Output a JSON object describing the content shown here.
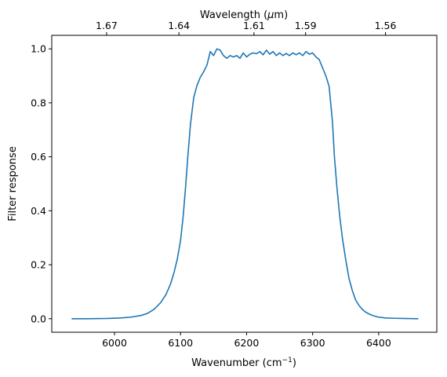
{
  "chart_data": {
    "type": "line",
    "xlabel": "Wavenumber (cm",
    "xlabel_sup": "−1",
    "xlabel_end": ")",
    "ylabel": "Filter response",
    "top_xlabel_pre": "Wavelength (",
    "top_xlabel_mu": "μ",
    "top_xlabel_post": "m)",
    "xlim": [
      5905,
      6488
    ],
    "ylim": [
      -0.05,
      1.05
    ],
    "grid": false,
    "line_color": "#1f77b4",
    "x_ticks": [
      {
        "value": 6000,
        "label": "6000"
      },
      {
        "value": 6100,
        "label": "6100"
      },
      {
        "value": 6200,
        "label": "6200"
      },
      {
        "value": 6300,
        "label": "6300"
      },
      {
        "value": 6400,
        "label": "6400"
      }
    ],
    "y_ticks": [
      {
        "value": 0.0,
        "label": "0.0"
      },
      {
        "value": 0.2,
        "label": "0.2"
      },
      {
        "value": 0.4,
        "label": "0.4"
      },
      {
        "value": 0.6,
        "label": "0.6"
      },
      {
        "value": 0.8,
        "label": "0.8"
      },
      {
        "value": 1.0,
        "label": "1.0"
      }
    ],
    "top_ticks": [
      {
        "value": 1.67,
        "label": "1.67"
      },
      {
        "value": 1.64,
        "label": "1.64"
      },
      {
        "value": 1.61,
        "label": "1.61"
      },
      {
        "value": 1.59,
        "label": "1.59"
      },
      {
        "value": 1.56,
        "label": "1.56"
      }
    ],
    "series": [
      {
        "x": [
          5935,
          5960,
          5990,
          6010,
          6025,
          6040,
          6050,
          6060,
          6070,
          6078,
          6085,
          6090,
          6095,
          6100,
          6104,
          6108,
          6111,
          6115,
          6120,
          6125,
          6130,
          6135,
          6140,
          6145,
          6150,
          6155,
          6160,
          6165,
          6170,
          6175,
          6180,
          6185,
          6190,
          6195,
          6200,
          6205,
          6210,
          6215,
          6220,
          6225,
          6230,
          6235,
          6240,
          6245,
          6250,
          6255,
          6260,
          6265,
          6270,
          6275,
          6280,
          6285,
          6290,
          6295,
          6300,
          6305,
          6310,
          6315,
          6320,
          6325,
          6330,
          6333,
          6337,
          6341,
          6345,
          6350,
          6355,
          6360,
          6365,
          6370,
          6375,
          6380,
          6385,
          6390,
          6395,
          6400,
          6410,
          6420,
          6435,
          6460
        ],
        "y": [
          0.0,
          0.0,
          0.001,
          0.003,
          0.006,
          0.012,
          0.02,
          0.035,
          0.06,
          0.09,
          0.13,
          0.17,
          0.22,
          0.29,
          0.38,
          0.5,
          0.6,
          0.72,
          0.82,
          0.865,
          0.895,
          0.915,
          0.94,
          0.99,
          0.975,
          1.0,
          0.995,
          0.975,
          0.965,
          0.975,
          0.97,
          0.975,
          0.965,
          0.985,
          0.97,
          0.98,
          0.985,
          0.982,
          0.99,
          0.978,
          0.995,
          0.98,
          0.99,
          0.975,
          0.985,
          0.975,
          0.983,
          0.975,
          0.985,
          0.978,
          0.985,
          0.975,
          0.99,
          0.98,
          0.985,
          0.97,
          0.96,
          0.93,
          0.9,
          0.86,
          0.73,
          0.6,
          0.48,
          0.38,
          0.3,
          0.22,
          0.15,
          0.105,
          0.07,
          0.05,
          0.035,
          0.025,
          0.018,
          0.013,
          0.009,
          0.006,
          0.003,
          0.002,
          0.001,
          0.0
        ]
      }
    ]
  }
}
